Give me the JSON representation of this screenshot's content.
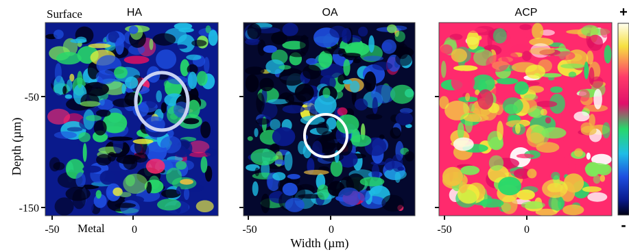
{
  "figure": {
    "surface_label": "Surface",
    "metal_label": "Metal",
    "ylabel": "Depth (µm)",
    "xlabel": "Width (µm)",
    "colorbar_plus": "+",
    "colorbar_minus": "-"
  },
  "colors": {
    "colormap": [
      "#000014",
      "#0a1a8c",
      "#1e4ee0",
      "#1fbde6",
      "#27d86a",
      "#7ee85a",
      "#f2f23a",
      "#f0c040",
      "#ff2a6d",
      "#e01060",
      "#ffffff"
    ]
  },
  "chart_data": [
    {
      "type": "heatmap",
      "title": "HA",
      "xticks": [
        "-50",
        "0"
      ],
      "yticks": [
        "-50",
        "-150"
      ],
      "mean_level": 0.22,
      "hotspot_marked": true,
      "hotspot_shape": "ellipse"
    },
    {
      "type": "heatmap",
      "title": "OA",
      "xticks": [
        "-50",
        "0"
      ],
      "yticks": [],
      "mean_level": 0.18,
      "hotspot_marked": true,
      "hotspot_shape": "circle"
    },
    {
      "type": "heatmap",
      "title": "ACP",
      "xticks": [
        "-50",
        "0"
      ],
      "yticks": [],
      "mean_level": 0.62,
      "hotspot_marked": false
    }
  ]
}
